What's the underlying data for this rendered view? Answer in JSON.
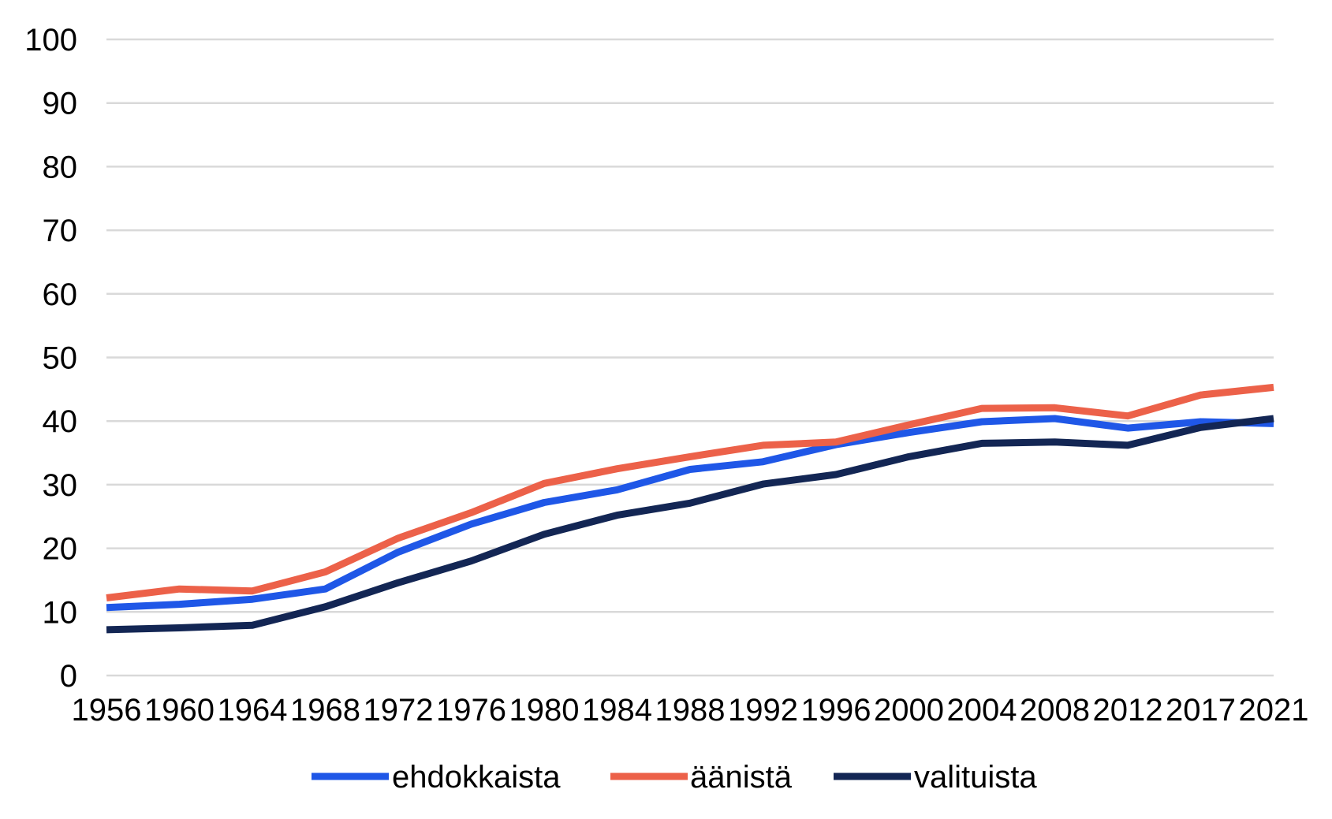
{
  "chart_data": {
    "type": "line",
    "title": "",
    "xlabel": "",
    "ylabel": "",
    "ylim": [
      0,
      100
    ],
    "yticks": [
      0,
      10,
      20,
      30,
      40,
      50,
      60,
      70,
      80,
      90,
      100
    ],
    "categories": [
      "1956",
      "1960",
      "1964",
      "1968",
      "1972",
      "1976",
      "1980",
      "1984",
      "1988",
      "1992",
      "1996",
      "2000",
      "2004",
      "2008",
      "2012",
      "2017",
      "2021"
    ],
    "grid": true,
    "legend_position": "bottom",
    "series": [
      {
        "name": "ehdokkaista",
        "color": "#1f57e7",
        "values": [
          10.7,
          11.2,
          12.0,
          13.6,
          19.4,
          23.8,
          27.2,
          29.2,
          32.4,
          33.6,
          36.3,
          38.2,
          39.9,
          40.4,
          38.9,
          39.9,
          39.6
        ]
      },
      {
        "name": "äänistä",
        "color": "#ec6149",
        "values": [
          12.2,
          13.6,
          13.3,
          16.3,
          21.6,
          25.6,
          30.2,
          32.5,
          34.4,
          36.2,
          36.7,
          39.4,
          42.0,
          42.1,
          40.8,
          44.1,
          45.3
        ]
      },
      {
        "name": "valituista",
        "color": "#132654",
        "values": [
          7.2,
          7.5,
          7.9,
          10.8,
          14.6,
          18.0,
          22.2,
          25.2,
          27.1,
          30.1,
          31.6,
          34.4,
          36.5,
          36.7,
          36.2,
          39.0,
          40.4
        ]
      }
    ]
  }
}
